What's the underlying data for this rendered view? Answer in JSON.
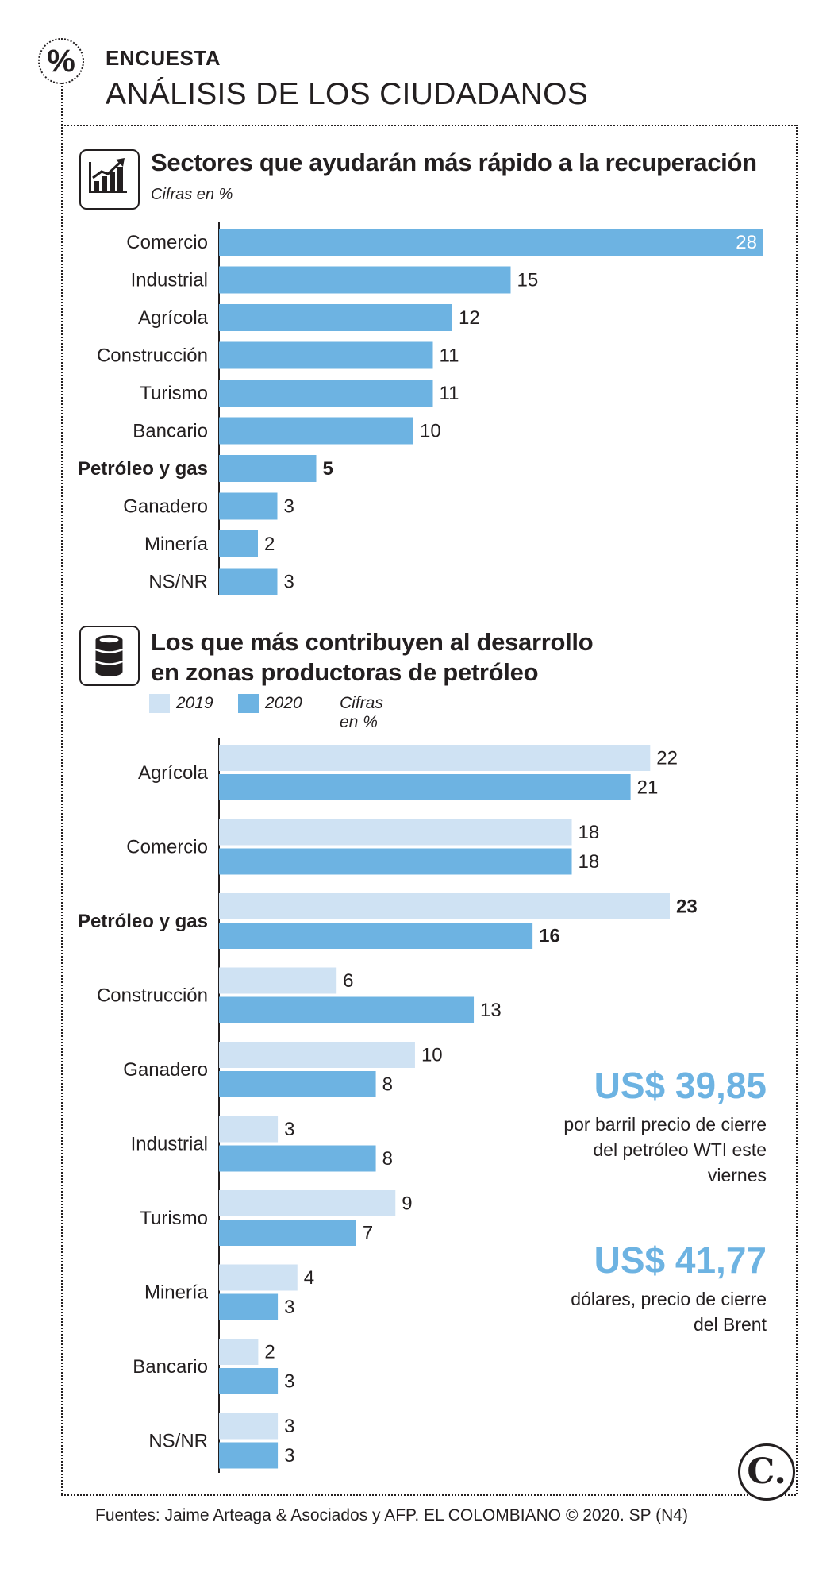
{
  "header": {
    "badge_symbol": "%",
    "kicker": "ENCUESTA",
    "title": "ANÁLISIS DE LOS CIUDADANOS"
  },
  "section1": {
    "icon": "growth-chart-icon",
    "title": "Sectores que ayudarán más rápido a la recuperación",
    "note": "Cifras en %"
  },
  "section2": {
    "icon": "oil-barrel-icon",
    "title_line1": "Los que más contribuyen al desarrollo",
    "title_line2": "en zonas productoras de petróleo",
    "legend": [
      {
        "label": "2019",
        "color": "#cfe2f3"
      },
      {
        "label": "2020",
        "color": "#6db3e2"
      }
    ],
    "note": "Cifras en %"
  },
  "chart_data": [
    {
      "type": "bar",
      "orientation": "horizontal",
      "title": "Sectores que ayudarán más rápido a la recuperación",
      "unit": "Cifras en %",
      "categories": [
        "Comercio",
        "Industrial",
        "Agrícola",
        "Construcción",
        "Turismo",
        "Bancario",
        "Petróleo y gas",
        "Ganadero",
        "Minería",
        "NS/NR"
      ],
      "values": [
        28,
        15,
        12,
        11,
        11,
        10,
        5,
        3,
        2,
        3
      ],
      "highlight": "Petróleo y gas",
      "color": "#6db3e2",
      "xlim": [
        0,
        28
      ]
    },
    {
      "type": "bar",
      "orientation": "horizontal",
      "title": "Los que más contribuyen al desarrollo en zonas productoras de petróleo",
      "unit": "Cifras en %",
      "categories": [
        "Agrícola",
        "Comercio",
        "Petróleo y gas",
        "Construcción",
        "Ganadero",
        "Industrial",
        "Turismo",
        "Minería",
        "Bancario",
        "NS/NR"
      ],
      "series": [
        {
          "name": "2019",
          "color": "#cfe2f3",
          "values": [
            22,
            18,
            23,
            6,
            10,
            3,
            9,
            4,
            2,
            3
          ]
        },
        {
          "name": "2020",
          "color": "#6db3e2",
          "values": [
            21,
            18,
            16,
            13,
            8,
            8,
            7,
            3,
            3,
            3
          ]
        }
      ],
      "highlight": "Petróleo y gas",
      "xlim": [
        0,
        23
      ]
    }
  ],
  "callouts": [
    {
      "value": "US$ 39,85",
      "text": "por barril precio de cierre del petróleo WTI este viernes"
    },
    {
      "value": "US$ 41,77",
      "text": "dólares, precio de cierre del Brent"
    }
  ],
  "logo_letter": "C.",
  "footer": "Fuentes: Jaime Arteaga & Asociados y AFP. EL COLOMBIANO © 2020. SP (N4)"
}
